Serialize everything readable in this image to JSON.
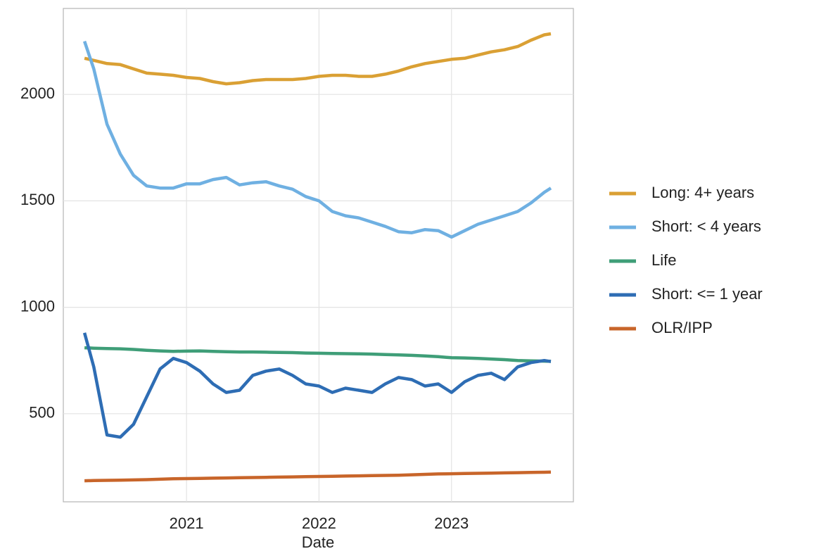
{
  "chart_data": {
    "type": "line",
    "x_label": "Date",
    "x": [
      2020.23,
      2020.3,
      2020.4,
      2020.5,
      2020.6,
      2020.7,
      2020.8,
      2020.9,
      2021.0,
      2021.1,
      2021.2,
      2021.3,
      2021.4,
      2021.5,
      2021.6,
      2021.7,
      2021.8,
      2021.9,
      2022.0,
      2022.1,
      2022.2,
      2022.3,
      2022.4,
      2022.5,
      2022.6,
      2022.7,
      2022.8,
      2022.9,
      2023.0,
      2023.1,
      2023.2,
      2023.3,
      2023.4,
      2023.5,
      2023.6,
      2023.7,
      2023.75
    ],
    "series": [
      {
        "name": "Long: 4+ years",
        "color": "#daa034",
        "values": [
          2170,
          2160,
          2145,
          2140,
          2120,
          2100,
          2095,
          2090,
          2080,
          2075,
          2060,
          2050,
          2055,
          2065,
          2070,
          2070,
          2070,
          2075,
          2085,
          2090,
          2090,
          2085,
          2085,
          2095,
          2110,
          2130,
          2145,
          2155,
          2165,
          2170,
          2185,
          2200,
          2210,
          2225,
          2255,
          2280,
          2285
        ]
      },
      {
        "name": "Short: < 4 years",
        "color": "#6fb0e2",
        "values": [
          2250,
          2120,
          1860,
          1720,
          1620,
          1570,
          1560,
          1560,
          1580,
          1580,
          1600,
          1610,
          1575,
          1585,
          1590,
          1570,
          1555,
          1520,
          1500,
          1450,
          1430,
          1420,
          1400,
          1380,
          1355,
          1350,
          1365,
          1360,
          1330,
          1360,
          1390,
          1410,
          1430,
          1450,
          1490,
          1540,
          1560
        ]
      },
      {
        "name": "Life",
        "color": "#3f9e78",
        "values": [
          810,
          808,
          806,
          805,
          802,
          798,
          795,
          793,
          794,
          795,
          793,
          791,
          790,
          790,
          789,
          788,
          787,
          785,
          784,
          783,
          782,
          781,
          780,
          778,
          776,
          774,
          771,
          768,
          763,
          762,
          760,
          757,
          754,
          750,
          748,
          747,
          746
        ]
      },
      {
        "name": "Short: <= 1 year",
        "color": "#2e6db4",
        "values": [
          880,
          720,
          400,
          390,
          450,
          580,
          710,
          760,
          740,
          700,
          640,
          600,
          610,
          680,
          700,
          710,
          680,
          640,
          630,
          600,
          620,
          610,
          600,
          640,
          670,
          660,
          630,
          640,
          600,
          650,
          680,
          690,
          660,
          720,
          740,
          750,
          745
        ]
      },
      {
        "name": "OLR/IPP",
        "color": "#c8652a",
        "values": [
          185,
          186,
          187,
          188,
          189,
          190,
          192,
          194,
          195,
          196,
          197,
          198,
          199,
          200,
          201,
          202,
          203,
          204,
          205,
          206,
          207,
          208,
          209,
          210,
          211,
          213,
          215,
          217,
          218,
          219,
          220,
          221,
          222,
          223,
          224,
          225,
          226
        ]
      }
    ],
    "xlim": [
      2020.07,
      2023.92
    ],
    "xticks": [
      2021,
      2022,
      2023
    ],
    "ylim": [
      86,
      2404
    ],
    "yticks": [
      500,
      1000,
      1500,
      2000
    ],
    "grid": true,
    "legend": "right"
  }
}
